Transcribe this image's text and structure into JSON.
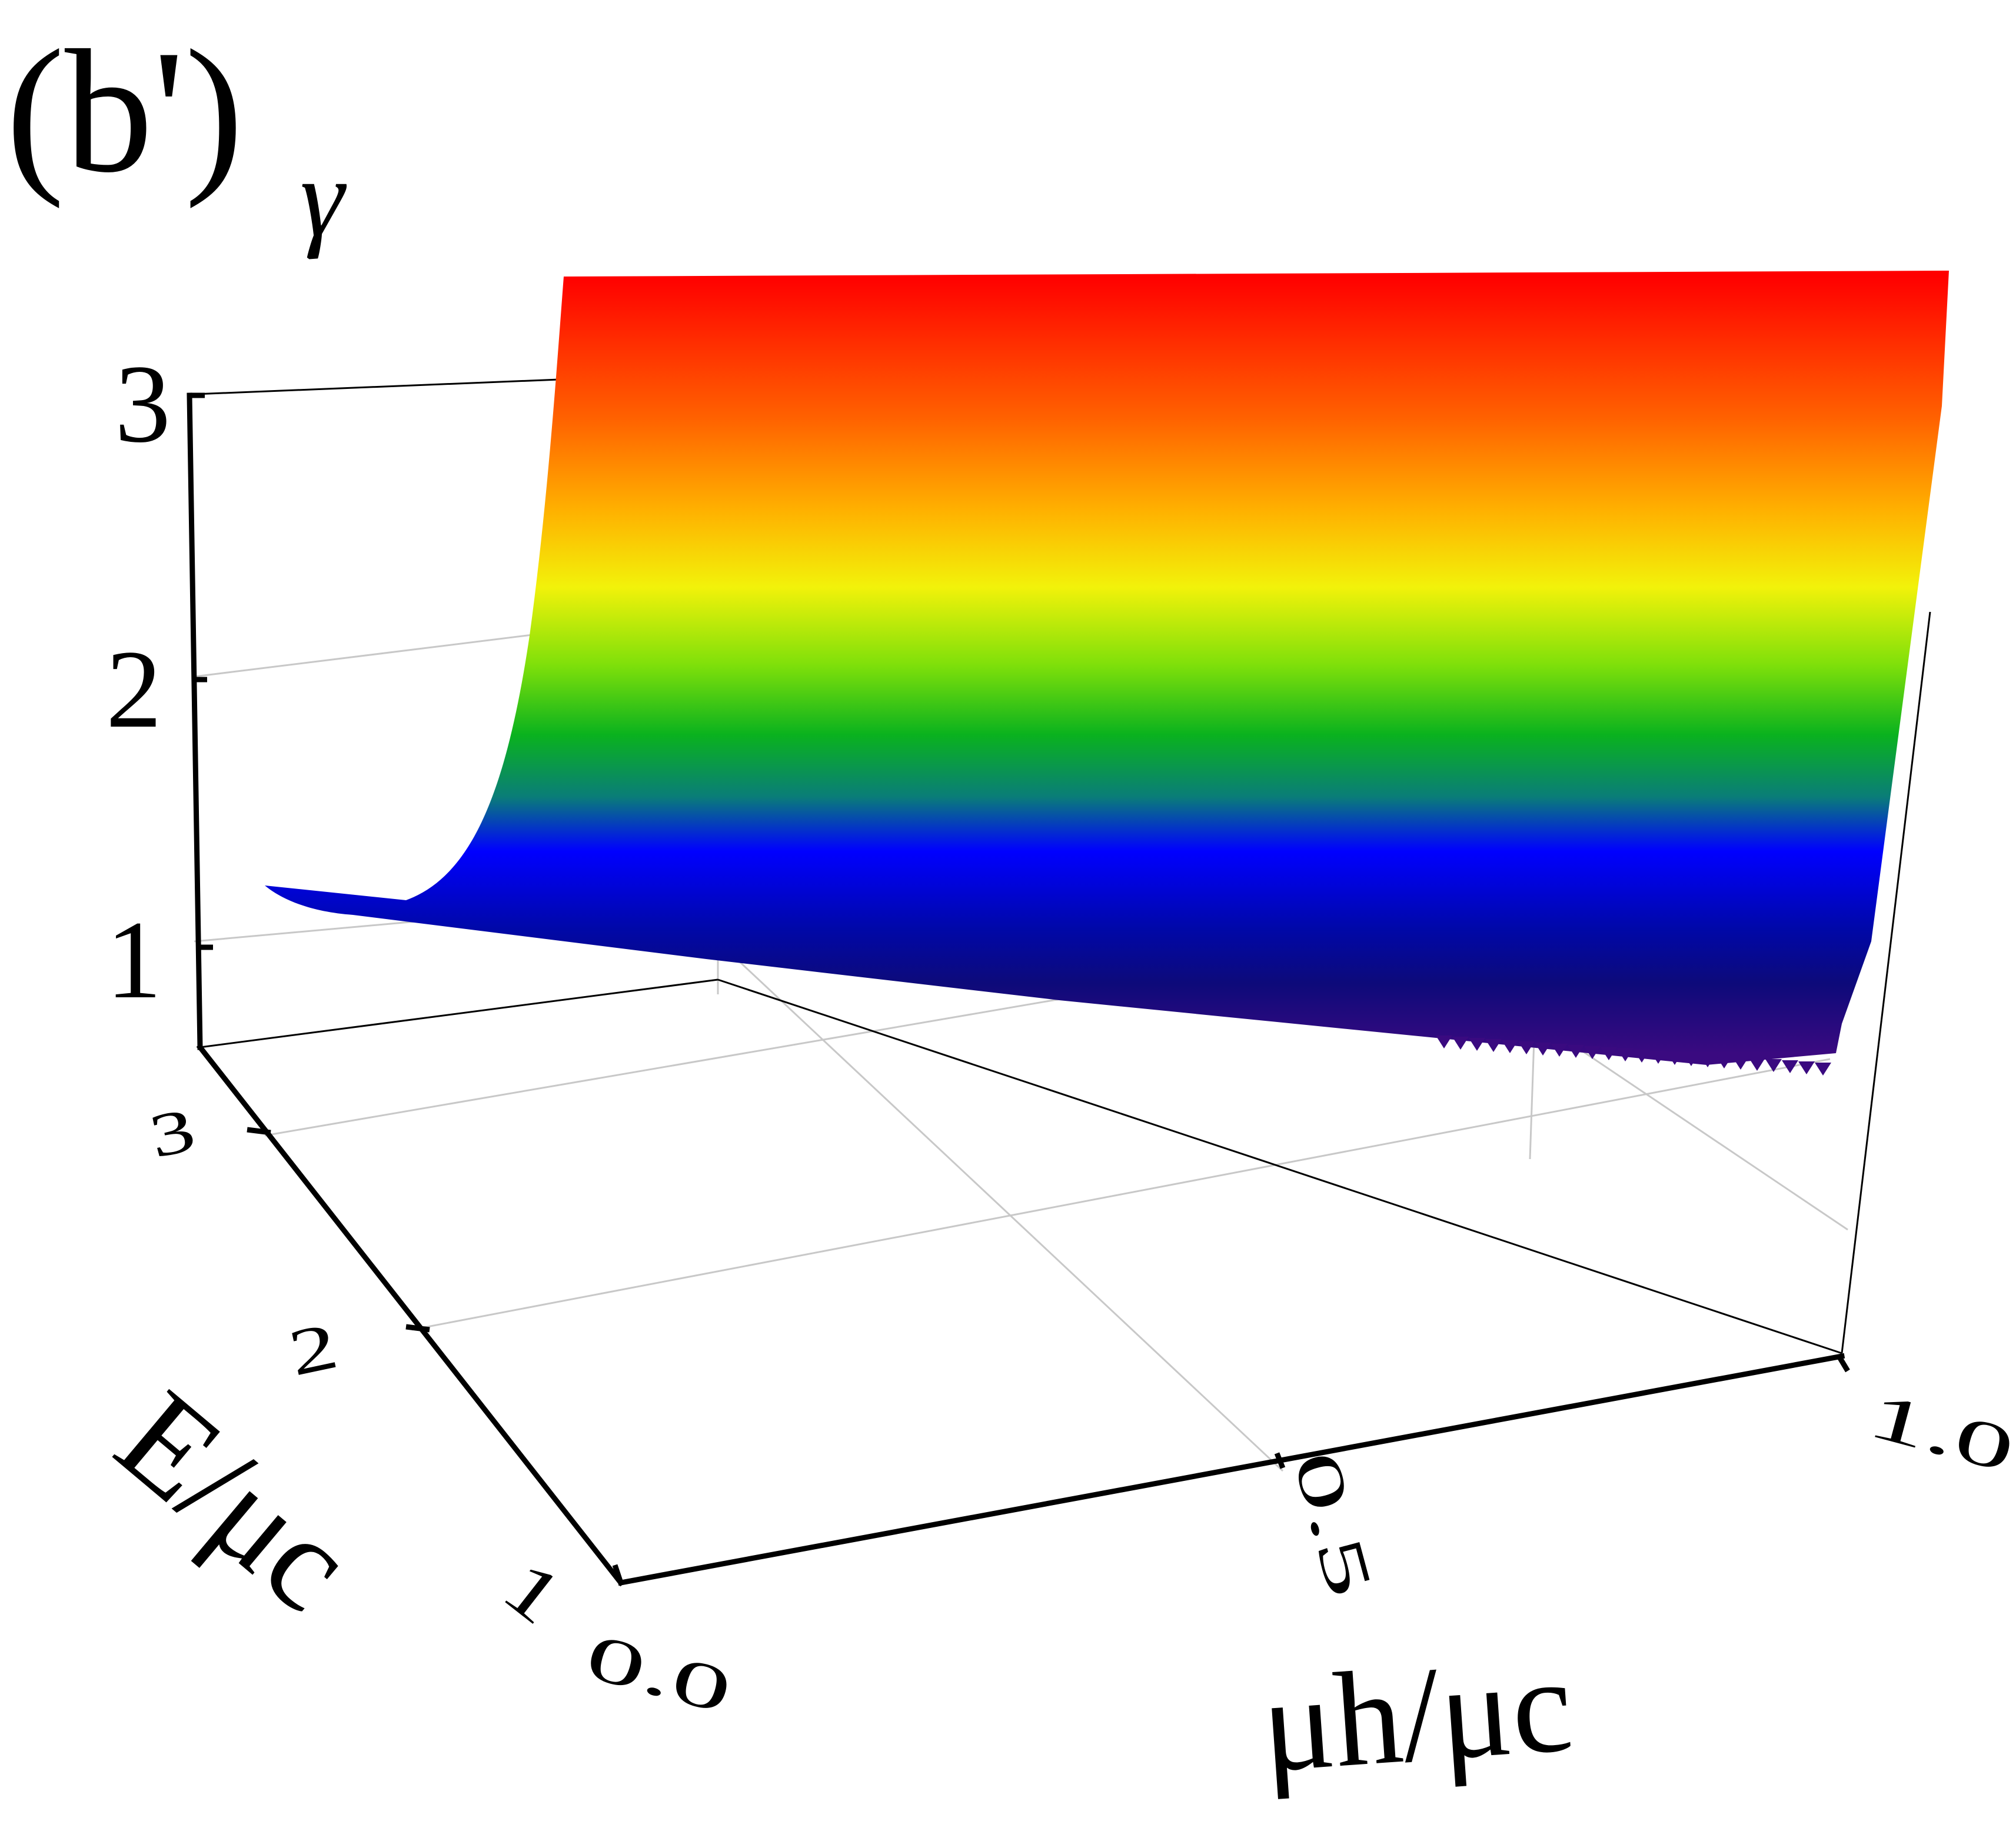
{
  "chart_data": {
    "type": "surface3d",
    "panel_label": "(b')",
    "zlabel": "γ",
    "xlabel": "μh/μc",
    "ylabel": "E/μc",
    "x_ticks": [
      "0.0",
      "0.5",
      "1.0"
    ],
    "y_ticks": [
      "1",
      "2",
      "3"
    ],
    "z_ticks": [
      "1",
      "2",
      "3"
    ],
    "xlim": [
      0,
      1
    ],
    "ylim": [
      1,
      3
    ],
    "zlim": [
      0.6,
      3
    ],
    "colormap": [
      "#2a0a6e",
      "#0d0a7a",
      "#0000ff",
      "#0a9a28",
      "#22c40a",
      "#f2f20a",
      "#ffb000",
      "#ff6000",
      "#ff0000"
    ],
    "surface": {
      "description_values": "gamma rises steeply as mu_h/mu_c approaches 0, nearly independent of E/mu_c",
      "mu_h_over_mu_c": [
        0.0,
        0.02,
        0.05,
        0.08,
        0.12,
        0.2,
        0.3,
        0.5,
        0.7,
        1.0
      ],
      "gamma": [
        3.4,
        3.3,
        2.8,
        2.0,
        1.5,
        1.15,
        1.02,
        0.95,
        0.9,
        0.85
      ]
    },
    "grid": true
  }
}
